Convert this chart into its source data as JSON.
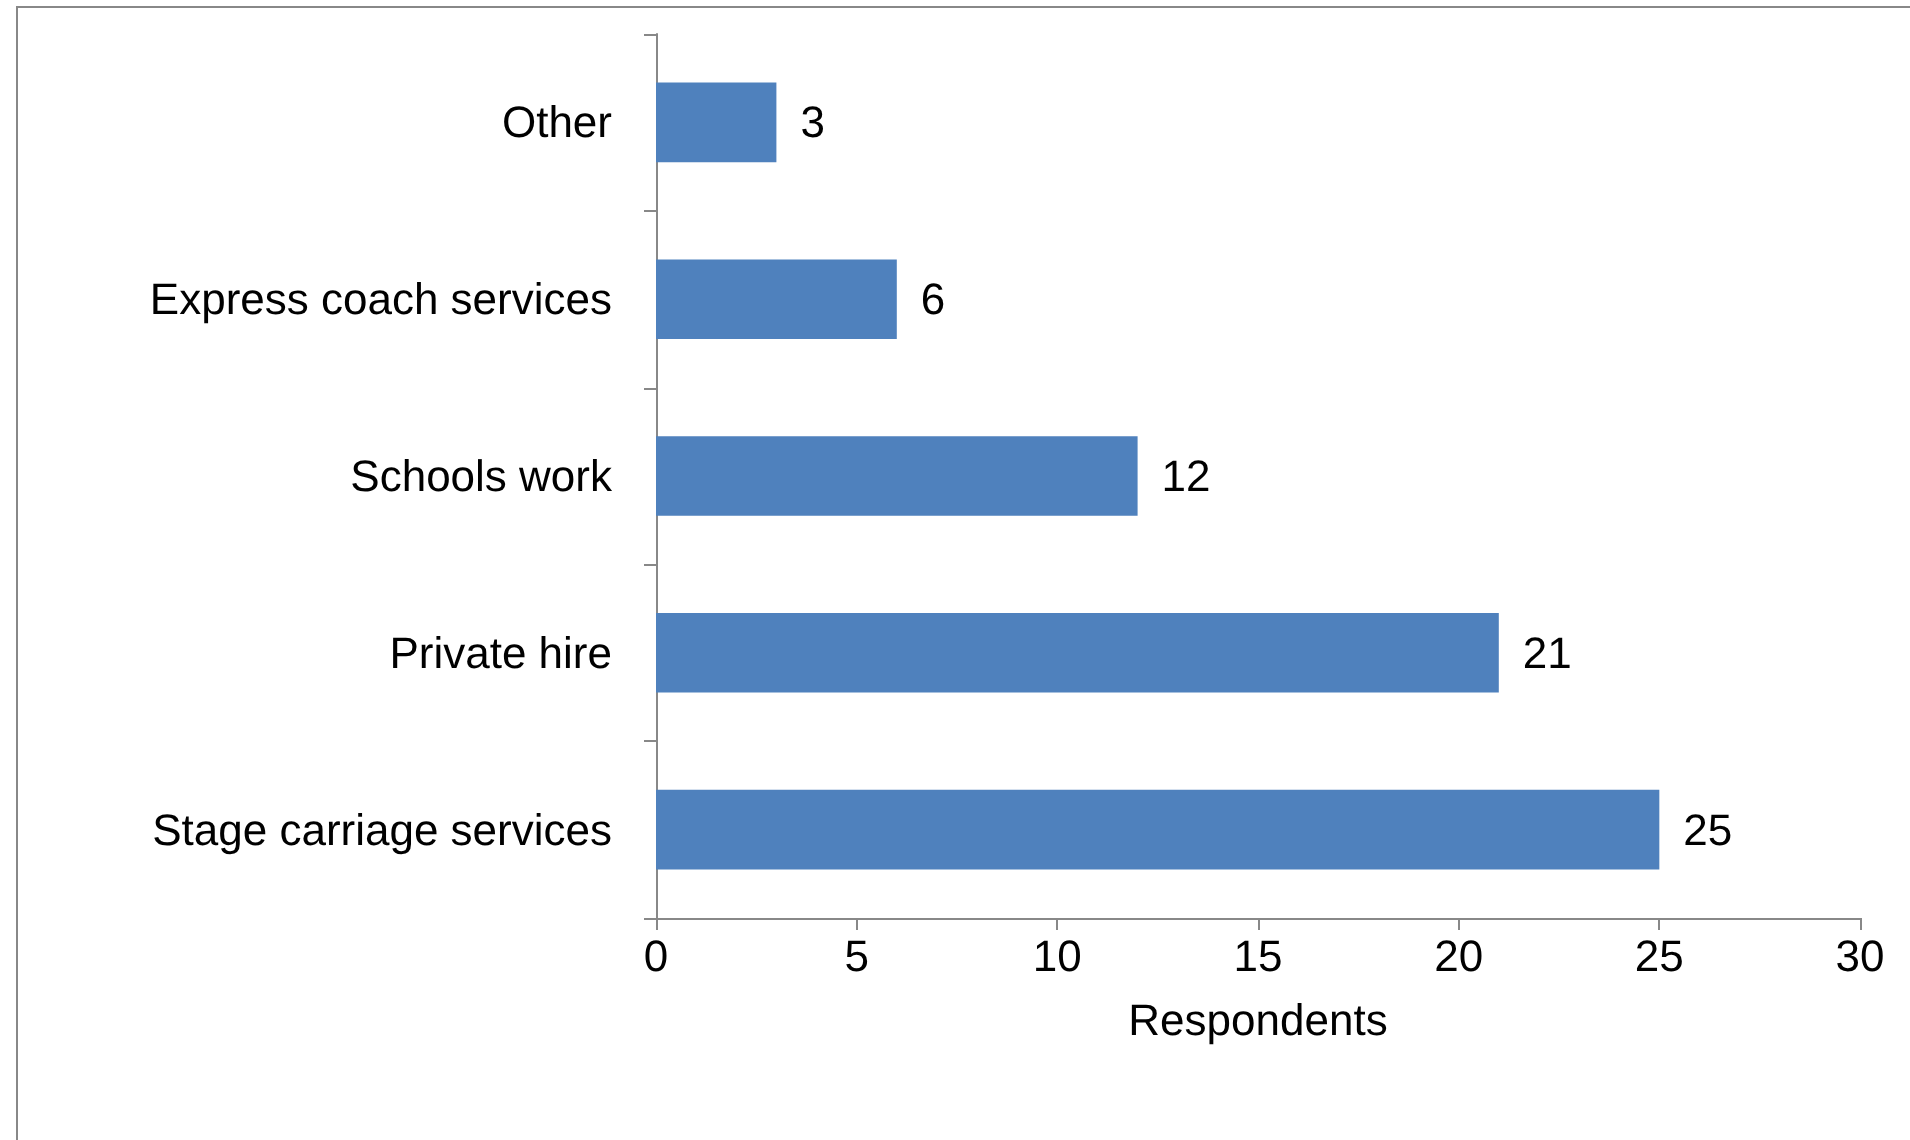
{
  "chart_data": {
    "type": "bar",
    "orientation": "horizontal",
    "xlabel": "Respondents",
    "categories": [
      "Other",
      "Express coach services",
      "Schools work",
      "Private hire",
      "Stage carriage services"
    ],
    "values": [
      3,
      6,
      12,
      21,
      25
    ],
    "color": "#4f81bd",
    "xlim": [
      0,
      30
    ],
    "xticks": [
      0,
      5,
      10,
      15,
      20,
      25,
      30
    ],
    "grid": false,
    "data_labels": true
  }
}
